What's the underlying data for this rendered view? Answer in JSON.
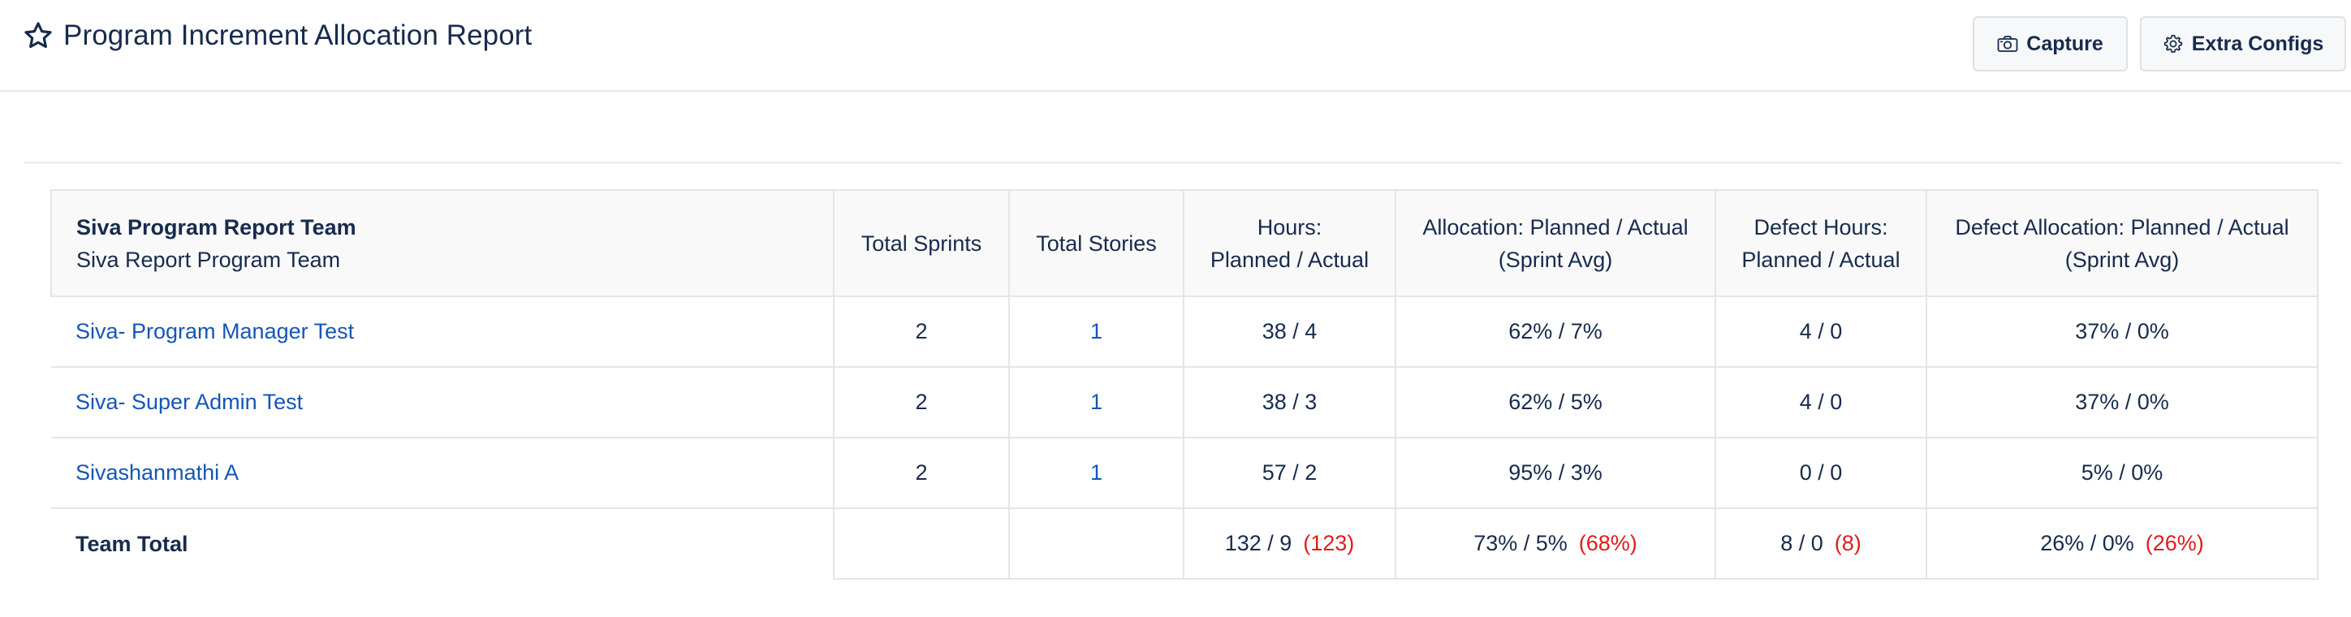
{
  "header": {
    "title": "Program Increment Allocation Report",
    "capture_label": "Capture",
    "extra_configs_label": "Extra Configs"
  },
  "table": {
    "team_name": "Siva Program Report Team",
    "team_subtitle": "Siva Report Program Team",
    "columns": {
      "total_sprints": "Total Sprints",
      "total_stories": "Total Stories",
      "hours_line1": "Hours:",
      "hours_line2": "Planned / Actual",
      "allocation_line1": "Allocation: Planned / Actual",
      "allocation_line2": "(Sprint Avg)",
      "defect_hours_line1": "Defect Hours:",
      "defect_hours_line2": "Planned / Actual",
      "defect_alloc_line1": "Defect Allocation: Planned / Actual",
      "defect_alloc_line2": "(Sprint Avg)"
    },
    "rows": [
      {
        "name": "Siva- Program Manager Test",
        "total_sprints": "2",
        "total_stories": "1",
        "hours": "38 / 4",
        "allocation": "62% / 7%",
        "defect_hours": "4 / 0",
        "defect_allocation": "37% / 0%"
      },
      {
        "name": "Siva- Super Admin Test",
        "total_sprints": "2",
        "total_stories": "1",
        "hours": "38 / 3",
        "allocation": "62% / 5%",
        "defect_hours": "4 / 0",
        "defect_allocation": "37% / 0%"
      },
      {
        "name": "Sivashanmathi A",
        "total_sprints": "2",
        "total_stories": "1",
        "hours": "57 / 2",
        "allocation": "95% / 3%",
        "defect_hours": "0 / 0",
        "defect_allocation": "5% / 0%"
      }
    ],
    "total": {
      "label": "Team Total",
      "total_sprints": "",
      "total_stories": "",
      "hours": "132 / 9",
      "hours_diff": "(123)",
      "allocation": "73% / 5%",
      "allocation_diff": "(68%)",
      "defect_hours": "8 / 0",
      "defect_hours_diff": "(8)",
      "defect_allocation": "26% / 0%",
      "defect_allocation_diff": "(26%)"
    }
  },
  "colors": {
    "text": "#172b4d",
    "link": "#1456b8",
    "negative": "#e01b1b",
    "header_bg": "#f9f9f9",
    "border": "#e3e5e8"
  }
}
